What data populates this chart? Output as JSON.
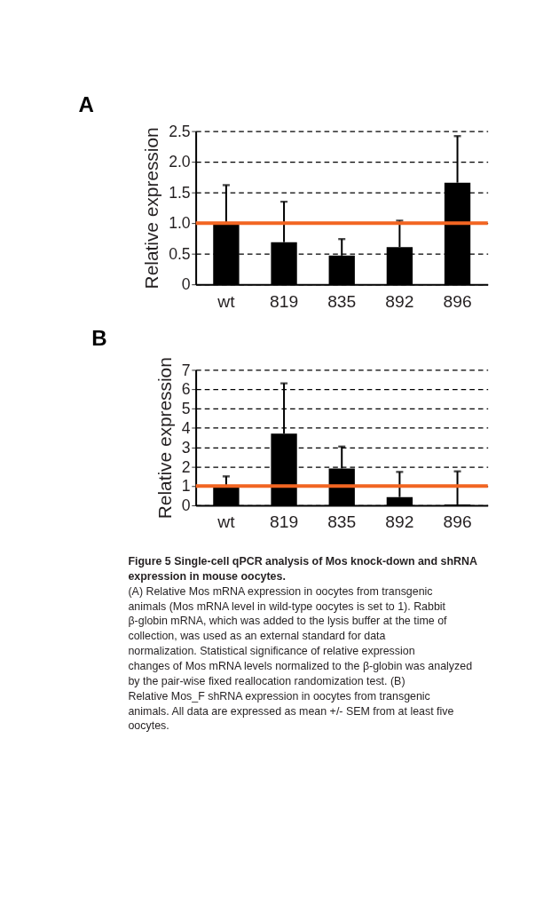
{
  "chart_data": [
    {
      "type": "bar",
      "title": "A",
      "ylabel": "Relative expression",
      "categories": [
        "wt",
        "819",
        "835",
        "892",
        "896"
      ],
      "series": [
        {
          "color": "#000000",
          "values": [
            1.0,
            0.69,
            0.47,
            0.61,
            1.66
          ],
          "errors": [
            [
              1.0,
              1.62
            ],
            [
              0.69,
              1.35
            ],
            [
              0.47,
              0.74
            ],
            [
              0.61,
              1.04
            ],
            [
              1.66,
              2.42
            ]
          ]
        }
      ],
      "ylim": [
        0,
        2.5
      ],
      "yticks": [
        {
          "value": 0,
          "label": "0"
        },
        0.5,
        {
          "value": 1,
          "label": "1.0"
        },
        1.5,
        {
          "value": 2,
          "label": "2.0"
        },
        2.5
      ],
      "grid": "y",
      "ref_lines": [
        {
          "axis": "y",
          "value": 1,
          "color": "#f26522"
        }
      ]
    },
    {
      "type": "bar",
      "title": "B",
      "ylabel": "Relative expression",
      "categories": [
        "wt",
        "819",
        "835",
        "892",
        "896"
      ],
      "series": [
        {
          "color": "#000000",
          "values": [
            0.95,
            3.71,
            1.91,
            0.43,
            0.05
          ],
          "errors": [
            [
              0.95,
              1.5
            ],
            [
              3.71,
              6.31
            ],
            [
              1.91,
              3.04
            ],
            [
              0.43,
              1.73
            ],
            [
              0.05,
              1.76
            ]
          ]
        }
      ],
      "ylim": [
        0,
        7
      ],
      "yticks": [
        0,
        1,
        2,
        3,
        4,
        5,
        6,
        7
      ],
      "grid": "y",
      "ref_lines": [
        {
          "axis": "y",
          "value": 1,
          "color": "#f26522"
        }
      ],
      "annotations": [
        "Figure 5 Single-cell qPCR analysis of Mos knock-down and shRNA expression in mouse oocytes.",
        "(A) Relative Mos mRNA expression in oocytes from transgenic animals (Mos mRNA level in wild-type oocytes is set to 1). Rabbit β-globin mRNA, which was added to the lysis buffer at the time of collection, was used as an external standard for data normalization. Statistical significance of relative expression changes of Mos mRNA levels normalized to the β-globin was analyzed by the pair-wise fixed reallocation randomization test. (B) Relative Mos_F shRNA expression in oocytes from transgenic animals. All data are expressed as mean +/- SEM from at least five oocytes."
      ]
    }
  ]
}
